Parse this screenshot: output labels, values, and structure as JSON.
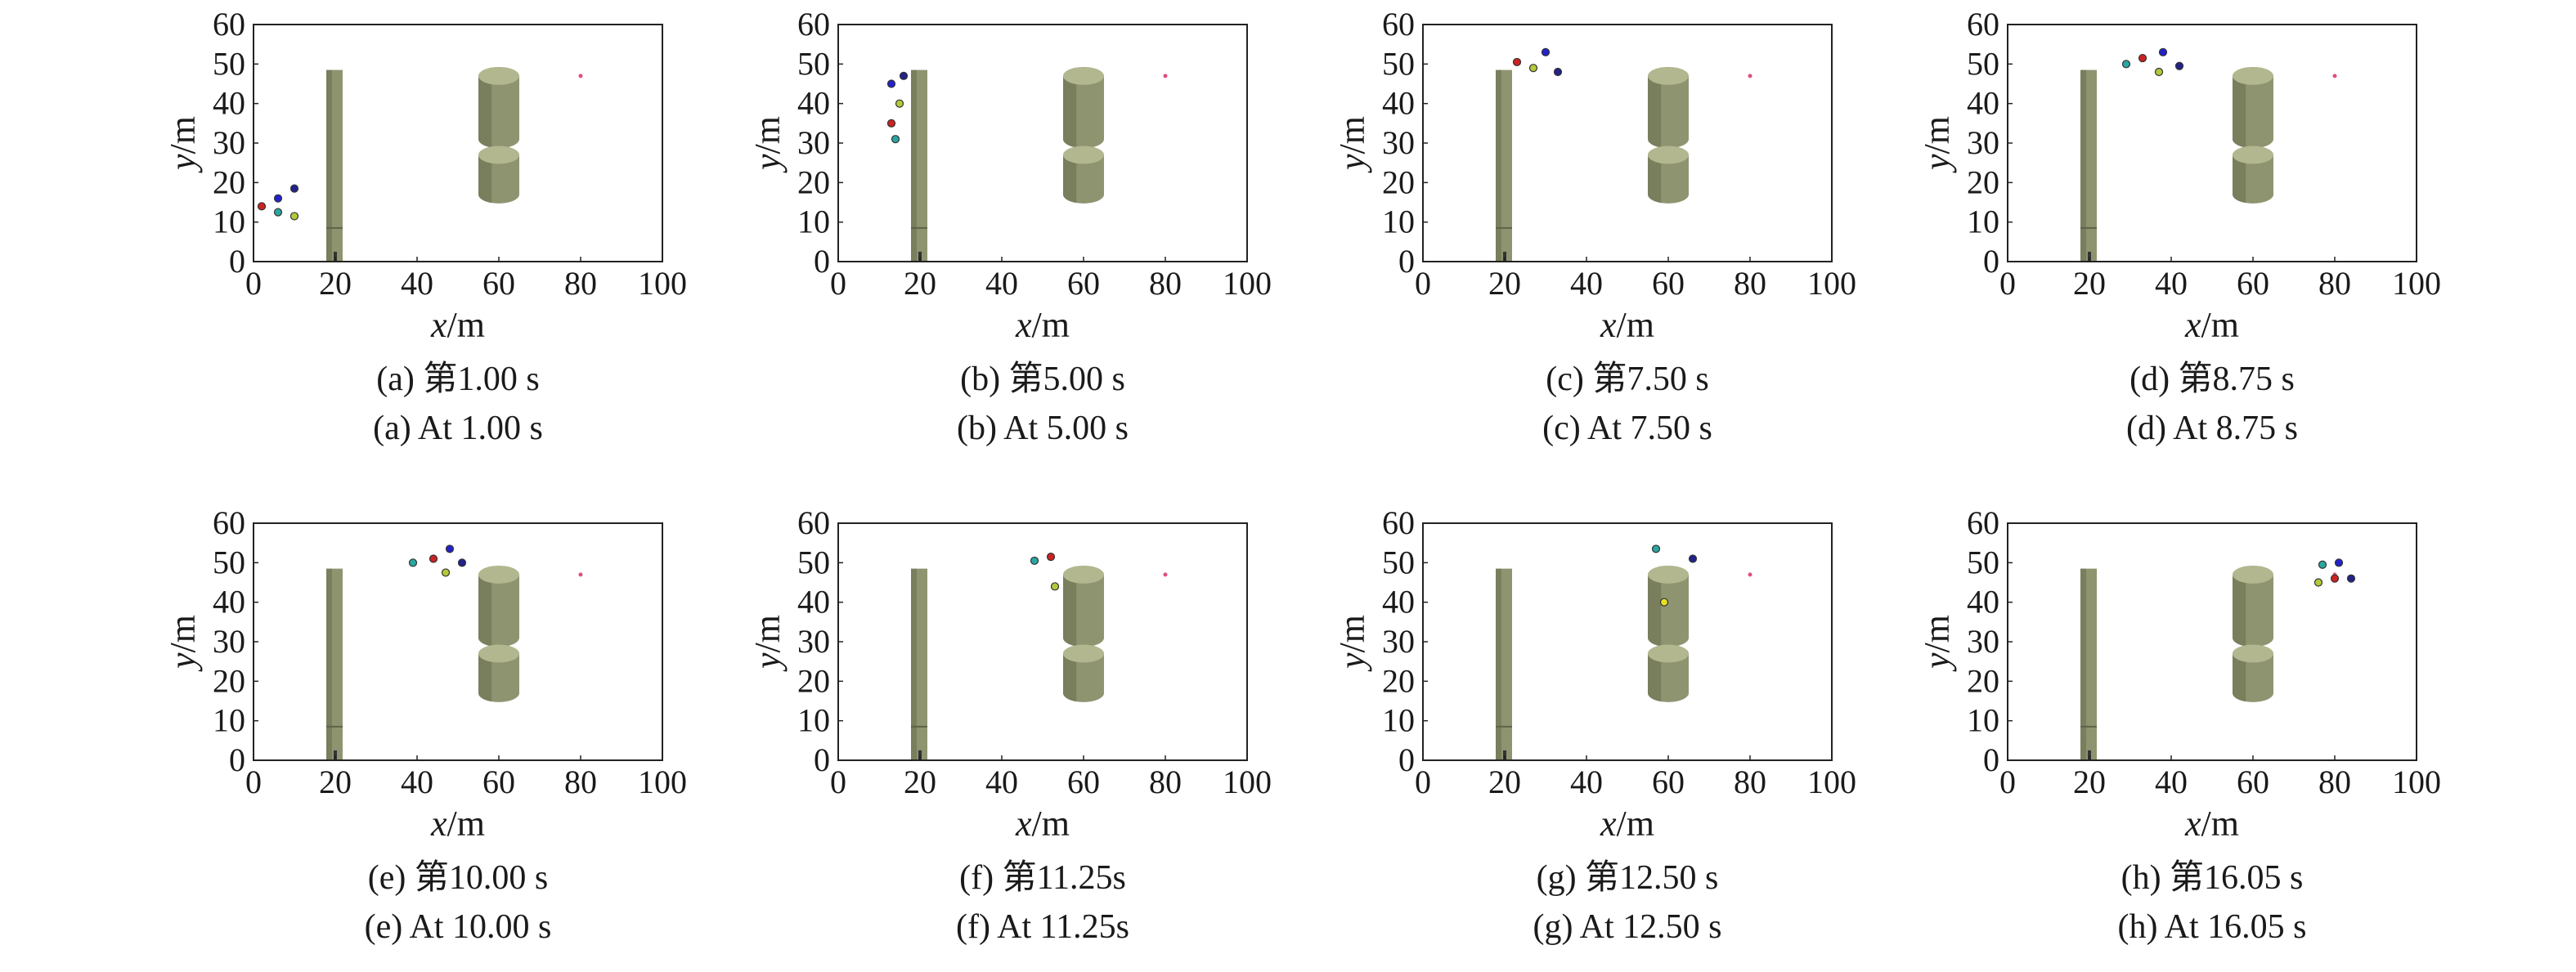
{
  "figure": {
    "colors": {
      "obstacle_fill": "#8f9470",
      "obstacle_top": "#b3b78f",
      "obstacle_dark": "#5f6347",
      "target": "#e0507a",
      "frame": "#222222"
    }
  },
  "chart_data": [
    {
      "type": "scatter",
      "caption_zh": "(a) 第1.00 s",
      "caption_en": "(a) At 1.00 s",
      "xlabel_var": "x",
      "xlabel_unit": "/m",
      "ylabel_var": "y",
      "ylabel_unit": "/m",
      "xlim": [
        0,
        100
      ],
      "ylim": [
        0,
        60
      ],
      "xticks": [
        "0",
        "20",
        "40",
        "60",
        "80",
        "100"
      ],
      "yticks": [
        "0",
        "10",
        "20",
        "30",
        "40",
        "50",
        "60"
      ],
      "agents": [
        {
          "x": 2,
          "y": 14,
          "color": "#cc2222"
        },
        {
          "x": 6,
          "y": 16,
          "color": "#2222cc"
        },
        {
          "x": 10,
          "y": 18.5,
          "color": "#22228a"
        },
        {
          "x": 6,
          "y": 12.5,
          "color": "#2aa6a0"
        },
        {
          "x": 10,
          "y": 11.5,
          "color": "#b5c83a"
        }
      ],
      "target": {
        "x": 80,
        "y": 47
      }
    },
    {
      "type": "scatter",
      "caption_zh": "(b) 第5.00 s",
      "caption_en": "(b) At 5.00 s",
      "xlabel_var": "x",
      "xlabel_unit": "/m",
      "ylabel_var": "y",
      "ylabel_unit": "/m",
      "xlim": [
        0,
        100
      ],
      "ylim": [
        0,
        60
      ],
      "xticks": [
        "0",
        "20",
        "40",
        "60",
        "80",
        "100"
      ],
      "yticks": [
        "0",
        "10",
        "20",
        "30",
        "40",
        "50",
        "60"
      ],
      "agents": [
        {
          "x": 13,
          "y": 45,
          "color": "#2222cc"
        },
        {
          "x": 16,
          "y": 47,
          "color": "#22228a"
        },
        {
          "x": 15,
          "y": 40,
          "color": "#b5c83a"
        },
        {
          "x": 13,
          "y": 35,
          "color": "#cc2222"
        },
        {
          "x": 14,
          "y": 31,
          "color": "#2aa6a0"
        }
      ],
      "target": {
        "x": 80,
        "y": 47
      }
    },
    {
      "type": "scatter",
      "caption_zh": "(c) 第7.50 s",
      "caption_en": "(c) At 7.50 s",
      "xlabel_var": "x",
      "xlabel_unit": "/m",
      "ylabel_var": "y",
      "ylabel_unit": "/m",
      "xlim": [
        0,
        100
      ],
      "ylim": [
        0,
        60
      ],
      "xticks": [
        "0",
        "20",
        "40",
        "60",
        "80",
        "100"
      ],
      "yticks": [
        "0",
        "10",
        "20",
        "30",
        "40",
        "50",
        "60"
      ],
      "agents": [
        {
          "x": 23,
          "y": 50.5,
          "color": "#cc2222"
        },
        {
          "x": 30,
          "y": 53,
          "color": "#2222cc"
        },
        {
          "x": 27,
          "y": 49,
          "color": "#b5c83a"
        },
        {
          "x": 33,
          "y": 48,
          "color": "#22228a"
        }
      ],
      "target": {
        "x": 80,
        "y": 47
      }
    },
    {
      "type": "scatter",
      "caption_zh": "(d) 第8.75 s",
      "caption_en": "(d) At 8.75 s",
      "xlabel_var": "x",
      "xlabel_unit": "/m",
      "ylabel_var": "y",
      "ylabel_unit": "/m",
      "xlim": [
        0,
        100
      ],
      "ylim": [
        0,
        60
      ],
      "xticks": [
        "0",
        "20",
        "40",
        "60",
        "80",
        "100"
      ],
      "yticks": [
        "0",
        "10",
        "20",
        "30",
        "40",
        "50",
        "60"
      ],
      "agents": [
        {
          "x": 29,
          "y": 50,
          "color": "#2aa6a0"
        },
        {
          "x": 33,
          "y": 51.5,
          "color": "#cc2222"
        },
        {
          "x": 38,
          "y": 53,
          "color": "#2222cc"
        },
        {
          "x": 37,
          "y": 48,
          "color": "#b5c83a"
        },
        {
          "x": 42,
          "y": 49.5,
          "color": "#22228a"
        }
      ],
      "target": {
        "x": 80,
        "y": 47
      }
    },
    {
      "type": "scatter",
      "caption_zh": "(e) 第10.00 s",
      "caption_en": "(e) At 10.00 s",
      "xlabel_var": "x",
      "xlabel_unit": "/m",
      "ylabel_var": "y",
      "ylabel_unit": "/m",
      "xlim": [
        0,
        100
      ],
      "ylim": [
        0,
        60
      ],
      "xticks": [
        "0",
        "20",
        "40",
        "60",
        "80",
        "100"
      ],
      "yticks": [
        "0",
        "10",
        "20",
        "30",
        "40",
        "50",
        "60"
      ],
      "agents": [
        {
          "x": 39,
          "y": 50,
          "color": "#2aa6a0"
        },
        {
          "x": 44,
          "y": 51,
          "color": "#cc2222"
        },
        {
          "x": 48,
          "y": 53.5,
          "color": "#2222cc"
        },
        {
          "x": 47,
          "y": 47.5,
          "color": "#b5c83a"
        },
        {
          "x": 51,
          "y": 50,
          "color": "#22228a"
        }
      ],
      "target": {
        "x": 80,
        "y": 47
      }
    },
    {
      "type": "scatter",
      "caption_zh": "(f) 第11.25s",
      "caption_en": "(f) At 11.25s",
      "xlabel_var": "x",
      "xlabel_unit": "/m",
      "ylabel_var": "y",
      "ylabel_unit": "/m",
      "xlim": [
        0,
        100
      ],
      "ylim": [
        0,
        60
      ],
      "xticks": [
        "0",
        "20",
        "40",
        "60",
        "80",
        "100"
      ],
      "yticks": [
        "0",
        "10",
        "20",
        "30",
        "40",
        "50",
        "60"
      ],
      "agents": [
        {
          "x": 48,
          "y": 50.5,
          "color": "#2aa6a0"
        },
        {
          "x": 52,
          "y": 51.5,
          "color": "#cc2222"
        },
        {
          "x": 53,
          "y": 44,
          "color": "#b5c83a"
        }
      ],
      "target": {
        "x": 80,
        "y": 47
      }
    },
    {
      "type": "scatter",
      "caption_zh": "(g) 第12.50 s",
      "caption_en": "(g) At 12.50 s",
      "xlabel_var": "x",
      "xlabel_unit": "/m",
      "ylabel_var": "y",
      "ylabel_unit": "/m",
      "xlim": [
        0,
        100
      ],
      "ylim": [
        0,
        60
      ],
      "xticks": [
        "0",
        "20",
        "40",
        "60",
        "80",
        "100"
      ],
      "yticks": [
        "0",
        "10",
        "20",
        "30",
        "40",
        "50",
        "60"
      ],
      "agents": [
        {
          "x": 57,
          "y": 53.5,
          "color": "#2aa6a0"
        },
        {
          "x": 66,
          "y": 51,
          "color": "#22228a"
        },
        {
          "x": 59,
          "y": 40,
          "color": "#e8e020"
        }
      ],
      "target": {
        "x": 80,
        "y": 47
      }
    },
    {
      "type": "scatter",
      "caption_zh": "(h) 第16.05 s",
      "caption_en": "(h) At 16.05 s",
      "xlabel_var": "x",
      "xlabel_unit": "/m",
      "ylabel_var": "y",
      "ylabel_unit": "/m",
      "xlim": [
        0,
        100
      ],
      "ylim": [
        0,
        60
      ],
      "xticks": [
        "0",
        "20",
        "40",
        "60",
        "80",
        "100"
      ],
      "yticks": [
        "0",
        "10",
        "20",
        "30",
        "40",
        "50",
        "60"
      ],
      "agents": [
        {
          "x": 77,
          "y": 49.5,
          "color": "#2aa6a0"
        },
        {
          "x": 81,
          "y": 50,
          "color": "#2222cc"
        },
        {
          "x": 76,
          "y": 45,
          "color": "#b5c83a"
        },
        {
          "x": 80,
          "y": 46,
          "color": "#cc2222"
        },
        {
          "x": 84,
          "y": 46,
          "color": "#22228a"
        }
      ],
      "target": {
        "x": 80,
        "y": 47
      }
    }
  ]
}
